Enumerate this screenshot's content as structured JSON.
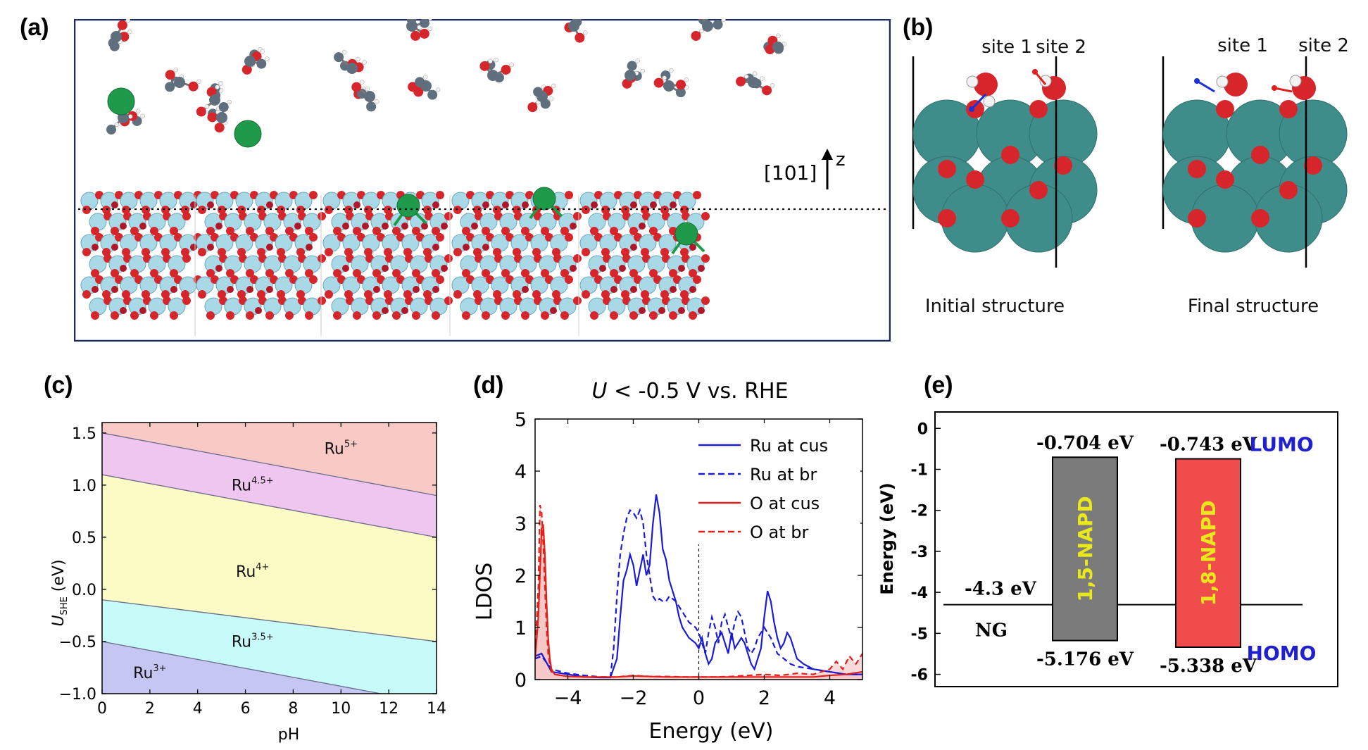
{
  "panels": {
    "a": {
      "label": "(a)",
      "axis_text": "[101]",
      "z_label": "z"
    },
    "b": {
      "label": "(b)",
      "initial": {
        "site1": "site 1",
        "site2": "site 2",
        "caption": "Initial structure"
      },
      "final": {
        "site1": "site 1",
        "site2": "site 2",
        "caption": "Final structure"
      }
    },
    "c": {
      "label": "(c)"
    },
    "d": {
      "label": "(d)"
    },
    "e": {
      "label": "(e)"
    }
  },
  "colors": {
    "ru_large": "#3f8d8a",
    "oxygen": "#d7262b",
    "ti_slab": "#a9d9e6",
    "metal_green": "#1f9a4a",
    "carbon": "#5f6f7d",
    "hydrogen": "#f2f2f2"
  },
  "chart_data": [
    {
      "id": "c",
      "type": "area",
      "xlabel": "pH",
      "ylabel_main": "U",
      "ylabel_sub": "SHE",
      "ylabel_unit": " (eV)",
      "xlim": [
        0,
        14
      ],
      "ylim": [
        -1.0,
        1.6
      ],
      "xticks": [
        0,
        2,
        4,
        6,
        8,
        10,
        12,
        14
      ],
      "yticks": [
        -1.0,
        -0.5,
        0.0,
        0.5,
        1.0,
        1.5
      ],
      "ytick_labels": [
        "−1.0",
        "−0.5",
        "0.0",
        "0.5",
        "1.0",
        "1.5"
      ],
      "boundaries": [
        {
          "y0": 1.5,
          "y1": 0.9
        },
        {
          "y0": 1.1,
          "y1": 0.5
        },
        {
          "y0": -0.1,
          "y1": -0.5
        },
        {
          "y0": -0.5,
          "y1": -1.1
        }
      ],
      "regions": [
        {
          "base": "Ru",
          "sup": "5+",
          "x": 10.0,
          "y": 1.3,
          "color": "#f9c9c6"
        },
        {
          "base": "Ru",
          "sup": "4.5+",
          "x": 6.3,
          "y": 0.95,
          "color": "#efc6ef"
        },
        {
          "base": "Ru",
          "sup": "4+",
          "x": 6.3,
          "y": 0.12,
          "color": "#fbfbc6"
        },
        {
          "base": "Ru",
          "sup": "3.5+",
          "x": 6.3,
          "y": -0.55,
          "color": "#c6fbf9"
        },
        {
          "base": "Ru",
          "sup": "3+",
          "x": 2.0,
          "y": -0.85,
          "color": "#c6c6f2"
        }
      ]
    },
    {
      "id": "d",
      "type": "line",
      "title_italic": "U",
      "title_rest": " < -0.5 V vs. RHE",
      "xlabel": "Energy (eV)",
      "ylabel": "LDOS",
      "xlim": [
        -5,
        5
      ],
      "ylim": [
        0,
        5
      ],
      "xticks": [
        -4,
        -2,
        0,
        2,
        4
      ],
      "xtick_labels": [
        "−4",
        "−2",
        "0",
        "2",
        "4"
      ],
      "yticks": [
        0,
        1,
        2,
        3,
        4,
        5
      ],
      "series": [
        {
          "name": "Ru at cus",
          "color": "#1b1bd6",
          "dash": false,
          "x": [
            -5.0,
            -4.8,
            -4.5,
            -4.2,
            -4.0,
            -3.5,
            -3.0,
            -2.7,
            -2.5,
            -2.4,
            -2.3,
            -2.2,
            -2.1,
            -2.0,
            -1.9,
            -1.8,
            -1.7,
            -1.6,
            -1.5,
            -1.4,
            -1.3,
            -1.2,
            -1.1,
            -1.0,
            -0.9,
            -0.8,
            -0.7,
            -0.6,
            -0.5,
            -0.4,
            -0.3,
            -0.2,
            -0.1,
            0.0,
            0.1,
            0.2,
            0.3,
            0.4,
            0.5,
            0.6,
            0.7,
            0.8,
            0.9,
            1.0,
            1.1,
            1.2,
            1.3,
            1.4,
            1.5,
            1.6,
            1.7,
            1.8,
            1.9,
            2.0,
            2.1,
            2.2,
            2.3,
            2.4,
            2.5,
            2.6,
            2.7,
            2.8,
            2.9,
            3.0,
            3.2,
            3.5,
            4.0,
            4.5,
            5.0
          ],
          "y": [
            0.45,
            0.5,
            0.15,
            0.12,
            0.1,
            0.05,
            0.04,
            0.04,
            0.4,
            1.2,
            1.9,
            2.1,
            2.4,
            2.2,
            1.8,
            2.1,
            2.4,
            2.0,
            2.2,
            3.0,
            3.55,
            3.2,
            2.5,
            2.3,
            1.9,
            1.7,
            1.5,
            1.2,
            1.0,
            0.9,
            0.8,
            0.75,
            0.7,
            0.6,
            0.8,
            0.5,
            0.3,
            0.4,
            0.7,
            0.8,
            0.9,
            0.7,
            0.5,
            0.9,
            0.6,
            0.7,
            0.8,
            0.7,
            0.5,
            0.3,
            0.2,
            0.4,
            0.6,
            1.2,
            1.7,
            1.5,
            1.1,
            0.8,
            0.6,
            0.7,
            0.9,
            0.8,
            0.6,
            0.4,
            0.3,
            0.2,
            0.15,
            0.1,
            0.1
          ]
        },
        {
          "name": "Ru at br",
          "color": "#1b1bd6",
          "dash": true,
          "x": [
            -5.0,
            -4.8,
            -4.5,
            -4.2,
            -4.0,
            -3.5,
            -3.0,
            -2.7,
            -2.6,
            -2.5,
            -2.4,
            -2.3,
            -2.2,
            -2.1,
            -2.0,
            -1.9,
            -1.8,
            -1.7,
            -1.6,
            -1.5,
            -1.4,
            -1.3,
            -1.2,
            -1.1,
            -1.0,
            -0.9,
            -0.8,
            -0.7,
            -0.6,
            -0.5,
            -0.4,
            -0.3,
            -0.2,
            -0.1,
            0.0,
            0.1,
            0.2,
            0.3,
            0.4,
            0.5,
            0.6,
            0.7,
            0.8,
            0.9,
            1.0,
            1.1,
            1.2,
            1.3,
            1.4,
            1.5,
            1.6,
            1.7,
            1.8,
            1.9,
            2.0,
            2.2,
            2.4,
            2.6,
            2.8,
            3.0,
            3.5,
            4.0,
            4.5,
            5.0
          ],
          "y": [
            0.4,
            0.45,
            0.2,
            0.15,
            0.12,
            0.08,
            0.05,
            0.05,
            0.6,
            1.6,
            2.4,
            2.8,
            3.1,
            3.25,
            3.2,
            3.1,
            3.25,
            3.0,
            2.4,
            2.0,
            1.6,
            1.5,
            1.55,
            1.5,
            1.5,
            1.6,
            1.55,
            1.5,
            1.4,
            1.3,
            1.2,
            1.1,
            1.05,
            1.0,
            0.9,
            0.7,
            0.5,
            0.9,
            1.2,
            1.0,
            0.7,
            1.1,
            1.25,
            1.0,
            0.8,
            1.1,
            1.3,
            1.2,
            0.9,
            0.6,
            0.5,
            0.6,
            0.8,
            0.9,
            1.0,
            0.8,
            0.5,
            0.4,
            0.3,
            0.25,
            0.2,
            0.15,
            0.1,
            0.1
          ]
        },
        {
          "name": "O at cus",
          "color": "#e0201b",
          "dash": false,
          "fill": true,
          "x": [
            -5.0,
            -4.9,
            -4.8,
            -4.75,
            -4.7,
            -4.65,
            -4.6,
            -4.55,
            -4.5,
            -4.4,
            -4.2,
            -4.0,
            -3.5,
            -3.0,
            -2.5,
            -2.0,
            -1.5,
            -1.0,
            -0.5,
            0.0,
            0.5,
            1.0,
            1.5,
            2.0,
            2.5,
            3.0,
            3.5,
            4.0,
            4.5,
            5.0
          ],
          "y": [
            0.4,
            1.2,
            2.9,
            2.95,
            2.4,
            1.5,
            0.8,
            0.4,
            0.2,
            0.1,
            0.08,
            0.06,
            0.05,
            0.05,
            0.05,
            0.07,
            0.06,
            0.05,
            0.05,
            0.05,
            0.05,
            0.05,
            0.05,
            0.05,
            0.05,
            0.05,
            0.05,
            0.08,
            0.1,
            0.15
          ]
        },
        {
          "name": "O at br",
          "color": "#e0201b",
          "dash": true,
          "fill": true,
          "x": [
            -5.0,
            -4.9,
            -4.85,
            -4.8,
            -4.75,
            -4.7,
            -4.65,
            -4.6,
            -4.55,
            -4.5,
            -4.4,
            -4.2,
            -4.0,
            -3.5,
            -3.0,
            -2.5,
            -2.0,
            -1.5,
            -1.0,
            -0.5,
            0.0,
            0.5,
            1.0,
            1.5,
            2.0,
            2.5,
            3.0,
            3.5,
            4.0,
            4.2,
            4.4,
            4.6,
            4.8,
            5.0
          ],
          "y": [
            0.5,
            1.8,
            3.35,
            3.2,
            2.6,
            1.8,
            1.0,
            0.5,
            0.3,
            0.15,
            0.1,
            0.08,
            0.06,
            0.05,
            0.05,
            0.05,
            0.08,
            0.06,
            0.06,
            0.05,
            0.05,
            0.05,
            0.06,
            0.08,
            0.1,
            0.08,
            0.12,
            0.1,
            0.2,
            0.35,
            0.2,
            0.45,
            0.3,
            0.5
          ]
        }
      ]
    },
    {
      "id": "e",
      "type": "bar",
      "ylabel": "Energy (eV)",
      "ylim": [
        -6.3,
        0.4
      ],
      "yticks": [
        0,
        -1,
        -2,
        -3,
        -4,
        -5,
        -6
      ],
      "ytick_labels": [
        "0",
        "-1",
        "-2",
        "-3",
        "-4",
        "-5",
        "-6"
      ],
      "fermi_level": -4.3,
      "fermi_value_label": "-4.3 eV",
      "fermi_name": "NG",
      "bars": [
        {
          "name": "1,5-NAPD",
          "lumo": -0.704,
          "homo": -5.176,
          "lumo_label": "-0.704 eV",
          "homo_label": "-5.176 eV",
          "color": "#7b7b7b",
          "text_color": "#e8e81a"
        },
        {
          "name": "1,8-NAPD",
          "lumo": -0.743,
          "homo": -5.338,
          "lumo_label": "-0.743 eV",
          "homo_label": "-5.338 eV",
          "color": "#f04c4c",
          "text_color": "#e8e81a"
        }
      ],
      "lumo_text": "LUMO",
      "homo_text": "HOMO",
      "label_color": "#2020d0"
    }
  ]
}
